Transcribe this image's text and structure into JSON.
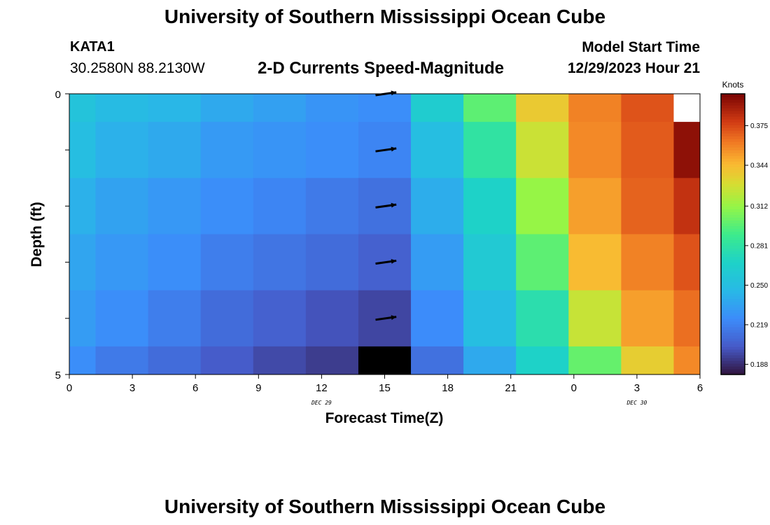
{
  "header": {
    "title": "University of Southern Mississippi Ocean Cube",
    "station": "KATA1",
    "coordinates": "30.2580N  88.2130W",
    "subtitle": "2-D Currents Speed-Magnitude",
    "model_start_label": "Model Start Time",
    "model_start_value": "12/29/2023 Hour 21"
  },
  "footer": {
    "title": "University of Southern Mississippi Ocean Cube"
  },
  "chart_data": {
    "type": "heatmap",
    "title": "2-D Currents Speed-Magnitude",
    "xlabel": "Forecast Time(Z)",
    "ylabel": "Depth (ft)",
    "x_tick_labels": [
      "0",
      "3",
      "6",
      "9",
      "12",
      "15",
      "18",
      "21",
      "0",
      "3",
      "6"
    ],
    "x_date_labels": [
      {
        "label": "DEC 29",
        "at_hour": 12
      },
      {
        "label": "DEC 30",
        "at_hour": 27
      }
    ],
    "y_tick_labels": [
      "0",
      "5"
    ],
    "y_range": [
      0,
      5
    ],
    "x_range_hours": [
      0,
      30
    ],
    "colorbar": {
      "title": "Knots",
      "min": 0.18,
      "max": 0.4,
      "ticks": [
        0.188,
        0.219,
        0.25,
        0.281,
        0.312,
        0.344,
        0.375
      ],
      "tick_labels": [
        "0.188",
        "0.219",
        "0.250",
        "0.281",
        "0.312",
        "0.344",
        "0.375"
      ]
    },
    "cells": [
      [
        {
          "t0": 0,
          "t1": 1.25,
          "d0": 0,
          "d1": 0.5,
          "v": 0.255
        },
        {
          "t0": 1.25,
          "t1": 3.75,
          "d0": 0,
          "d1": 0.5,
          "v": 0.248
        },
        {
          "t0": 3.75,
          "t1": 6.25,
          "d0": 0,
          "d1": 0.5,
          "v": 0.245
        },
        {
          "t0": 6.25,
          "t1": 8.75,
          "d0": 0,
          "d1": 0.5,
          "v": 0.238
        },
        {
          "t0": 8.75,
          "t1": 11.25,
          "d0": 0,
          "d1": 0.5,
          "v": 0.234
        },
        {
          "t0": 11.25,
          "t1": 13.75,
          "d0": 0,
          "d1": 0.5,
          "v": 0.228
        },
        {
          "t0": 13.75,
          "t1": 16.25,
          "d0": 0,
          "d1": 0.5,
          "v": 0.225
        },
        {
          "t0": 16.25,
          "t1": 18.75,
          "d0": 0,
          "d1": 0.5,
          "v": 0.263
        },
        {
          "t0": 18.75,
          "t1": 21.25,
          "d0": 0,
          "d1": 0.5,
          "v": 0.298
        },
        {
          "t0": 21.25,
          "t1": 23.75,
          "d0": 0,
          "d1": 0.5,
          "v": 0.338
        },
        {
          "t0": 23.75,
          "t1": 26.25,
          "d0": 0,
          "d1": 0.5,
          "v": 0.36
        },
        {
          "t0": 26.25,
          "t1": 28.75,
          "d0": 0,
          "d1": 0.5,
          "v": 0.372
        },
        {
          "t0": 28.75,
          "t1": 30,
          "d0": 0,
          "d1": 0.5,
          "v": null
        }
      ],
      [
        {
          "t0": 0,
          "t1": 1.25,
          "d0": 0.5,
          "d1": 1.5,
          "v": 0.25
        },
        {
          "t0": 1.25,
          "t1": 3.75,
          "d0": 0.5,
          "d1": 1.5,
          "v": 0.242
        },
        {
          "t0": 3.75,
          "t1": 6.25,
          "d0": 0.5,
          "d1": 1.5,
          "v": 0.238
        },
        {
          "t0": 6.25,
          "t1": 8.75,
          "d0": 0.5,
          "d1": 1.5,
          "v": 0.231
        },
        {
          "t0": 8.75,
          "t1": 11.25,
          "d0": 0.5,
          "d1": 1.5,
          "v": 0.228
        },
        {
          "t0": 11.25,
          "t1": 13.75,
          "d0": 0.5,
          "d1": 1.5,
          "v": 0.225
        },
        {
          "t0": 13.75,
          "t1": 16.25,
          "d0": 0.5,
          "d1": 1.5,
          "v": 0.221
        },
        {
          "t0": 16.25,
          "t1": 18.75,
          "d0": 0.5,
          "d1": 1.5,
          "v": 0.25
        },
        {
          "t0": 18.75,
          "t1": 21.25,
          "d0": 0.5,
          "d1": 1.5,
          "v": 0.282
        },
        {
          "t0": 21.25,
          "t1": 23.75,
          "d0": 0.5,
          "d1": 1.5,
          "v": 0.326
        },
        {
          "t0": 23.75,
          "t1": 26.25,
          "d0": 0.5,
          "d1": 1.5,
          "v": 0.358
        },
        {
          "t0": 26.25,
          "t1": 28.75,
          "d0": 0.5,
          "d1": 1.5,
          "v": 0.37
        },
        {
          "t0": 28.75,
          "t1": 30,
          "d0": 0.5,
          "d1": 1.5,
          "v": 0.395
        }
      ],
      [
        {
          "t0": 0,
          "t1": 1.25,
          "d0": 1.5,
          "d1": 2.5,
          "v": 0.242
        },
        {
          "t0": 1.25,
          "t1": 3.75,
          "d0": 1.5,
          "d1": 2.5,
          "v": 0.235
        },
        {
          "t0": 3.75,
          "t1": 6.25,
          "d0": 1.5,
          "d1": 2.5,
          "v": 0.23
        },
        {
          "t0": 6.25,
          "t1": 8.75,
          "d0": 1.5,
          "d1": 2.5,
          "v": 0.225
        },
        {
          "t0": 8.75,
          "t1": 11.25,
          "d0": 1.5,
          "d1": 2.5,
          "v": 0.221
        },
        {
          "t0": 11.25,
          "t1": 13.75,
          "d0": 1.5,
          "d1": 2.5,
          "v": 0.216
        },
        {
          "t0": 13.75,
          "t1": 16.25,
          "d0": 1.5,
          "d1": 2.5,
          "v": 0.212
        },
        {
          "t0": 16.25,
          "t1": 18.75,
          "d0": 1.5,
          "d1": 2.5,
          "v": 0.24
        },
        {
          "t0": 18.75,
          "t1": 21.25,
          "d0": 1.5,
          "d1": 2.5,
          "v": 0.268
        },
        {
          "t0": 21.25,
          "t1": 23.75,
          "d0": 1.5,
          "d1": 2.5,
          "v": 0.312
        },
        {
          "t0": 23.75,
          "t1": 26.25,
          "d0": 1.5,
          "d1": 2.5,
          "v": 0.352
        },
        {
          "t0": 26.25,
          "t1": 28.75,
          "d0": 1.5,
          "d1": 2.5,
          "v": 0.368
        },
        {
          "t0": 28.75,
          "t1": 30,
          "d0": 1.5,
          "d1": 2.5,
          "v": 0.382
        }
      ],
      [
        {
          "t0": 0,
          "t1": 1.25,
          "d0": 2.5,
          "d1": 3.5,
          "v": 0.236
        },
        {
          "t0": 1.25,
          "t1": 3.75,
          "d0": 2.5,
          "d1": 3.5,
          "v": 0.23
        },
        {
          "t0": 3.75,
          "t1": 6.25,
          "d0": 2.5,
          "d1": 3.5,
          "v": 0.225
        },
        {
          "t0": 6.25,
          "t1": 8.75,
          "d0": 2.5,
          "d1": 3.5,
          "v": 0.218
        },
        {
          "t0": 8.75,
          "t1": 11.25,
          "d0": 2.5,
          "d1": 3.5,
          "v": 0.214
        },
        {
          "t0": 11.25,
          "t1": 13.75,
          "d0": 2.5,
          "d1": 3.5,
          "v": 0.21
        },
        {
          "t0": 13.75,
          "t1": 16.25,
          "d0": 2.5,
          "d1": 3.5,
          "v": 0.205
        },
        {
          "t0": 16.25,
          "t1": 18.75,
          "d0": 2.5,
          "d1": 3.5,
          "v": 0.232
        },
        {
          "t0": 18.75,
          "t1": 21.25,
          "d0": 2.5,
          "d1": 3.5,
          "v": 0.26
        },
        {
          "t0": 21.25,
          "t1": 23.75,
          "d0": 2.5,
          "d1": 3.5,
          "v": 0.298
        },
        {
          "t0": 23.75,
          "t1": 26.25,
          "d0": 2.5,
          "d1": 3.5,
          "v": 0.344
        },
        {
          "t0": 26.25,
          "t1": 28.75,
          "d0": 2.5,
          "d1": 3.5,
          "v": 0.36
        },
        {
          "t0": 28.75,
          "t1": 30,
          "d0": 2.5,
          "d1": 3.5,
          "v": 0.372
        }
      ],
      [
        {
          "t0": 0,
          "t1": 1.25,
          "d0": 3.5,
          "d1": 4.5,
          "v": 0.232
        },
        {
          "t0": 1.25,
          "t1": 3.75,
          "d0": 3.5,
          "d1": 4.5,
          "v": 0.225
        },
        {
          "t0": 3.75,
          "t1": 6.25,
          "d0": 3.5,
          "d1": 4.5,
          "v": 0.218
        },
        {
          "t0": 6.25,
          "t1": 8.75,
          "d0": 3.5,
          "d1": 4.5,
          "v": 0.21
        },
        {
          "t0": 8.75,
          "t1": 11.25,
          "d0": 3.5,
          "d1": 4.5,
          "v": 0.205
        },
        {
          "t0": 11.25,
          "t1": 13.75,
          "d0": 3.5,
          "d1": 4.5,
          "v": 0.2
        },
        {
          "t0": 13.75,
          "t1": 16.25,
          "d0": 3.5,
          "d1": 4.5,
          "v": 0.196
        },
        {
          "t0": 16.25,
          "t1": 18.75,
          "d0": 3.5,
          "d1": 4.5,
          "v": 0.224
        },
        {
          "t0": 18.75,
          "t1": 21.25,
          "d0": 3.5,
          "d1": 4.5,
          "v": 0.25
        },
        {
          "t0": 21.25,
          "t1": 23.75,
          "d0": 3.5,
          "d1": 4.5,
          "v": 0.278
        },
        {
          "t0": 23.75,
          "t1": 26.25,
          "d0": 3.5,
          "d1": 4.5,
          "v": 0.325
        },
        {
          "t0": 26.25,
          "t1": 28.75,
          "d0": 3.5,
          "d1": 4.5,
          "v": 0.352
        },
        {
          "t0": 28.75,
          "t1": 30,
          "d0": 3.5,
          "d1": 4.5,
          "v": 0.365
        }
      ],
      [
        {
          "t0": 0,
          "t1": 1.25,
          "d0": 4.5,
          "d1": 5,
          "v": 0.225
        },
        {
          "t0": 1.25,
          "t1": 3.75,
          "d0": 4.5,
          "d1": 5,
          "v": 0.216
        },
        {
          "t0": 3.75,
          "t1": 6.25,
          "d0": 4.5,
          "d1": 5,
          "v": 0.21
        },
        {
          "t0": 6.25,
          "t1": 8.75,
          "d0": 4.5,
          "d1": 5,
          "v": 0.203
        },
        {
          "t0": 8.75,
          "t1": 11.25,
          "d0": 4.5,
          "d1": 5,
          "v": 0.197
        },
        {
          "t0": 11.25,
          "t1": 13.75,
          "d0": 4.5,
          "d1": 5,
          "v": 0.193
        },
        {
          "t0": 13.75,
          "t1": 16.25,
          "d0": 4.5,
          "d1": 5,
          "v": "black"
        },
        {
          "t0": 16.25,
          "t1": 18.75,
          "d0": 4.5,
          "d1": 5,
          "v": 0.212
        },
        {
          "t0": 18.75,
          "t1": 21.25,
          "d0": 4.5,
          "d1": 5,
          "v": 0.238
        },
        {
          "t0": 21.25,
          "t1": 23.75,
          "d0": 4.5,
          "d1": 5,
          "v": 0.268
        },
        {
          "t0": 23.75,
          "t1": 26.25,
          "d0": 4.5,
          "d1": 5,
          "v": 0.3
        },
        {
          "t0": 26.25,
          "t1": 28.75,
          "d0": 4.5,
          "d1": 5,
          "v": 0.336
        },
        {
          "t0": 28.75,
          "t1": 30,
          "d0": 4.5,
          "d1": 5,
          "v": 0.358
        }
      ]
    ],
    "vectors": {
      "at_hour": 15,
      "depths": [
        0,
        1,
        2,
        3,
        4
      ],
      "angle_deg": 8
    }
  }
}
